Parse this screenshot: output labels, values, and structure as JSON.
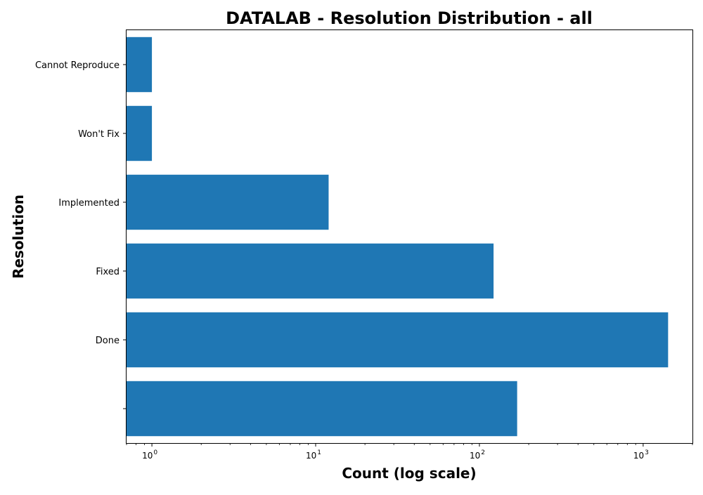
{
  "chart_data": {
    "type": "bar",
    "orientation": "horizontal",
    "title": "DATALAB - Resolution Distribution - all",
    "xlabel": "Count (log scale)",
    "ylabel": "Resolution",
    "x_scale": "log",
    "xlim": [
      0.7,
      2000
    ],
    "x_ticks": [
      1,
      10,
      100,
      1000
    ],
    "x_tick_labels": [
      {
        "base": "10",
        "exp": "0"
      },
      {
        "base": "10",
        "exp": "1"
      },
      {
        "base": "10",
        "exp": "2"
      },
      {
        "base": "10",
        "exp": "3"
      }
    ],
    "categories": [
      "",
      "Done",
      "Fixed",
      "Implemented",
      "Won't Fix",
      "Cannot Reproduce"
    ],
    "values": [
      170,
      1420,
      122,
      12,
      1,
      1
    ],
    "bar_color": "#1f77b4",
    "grid": false
  }
}
